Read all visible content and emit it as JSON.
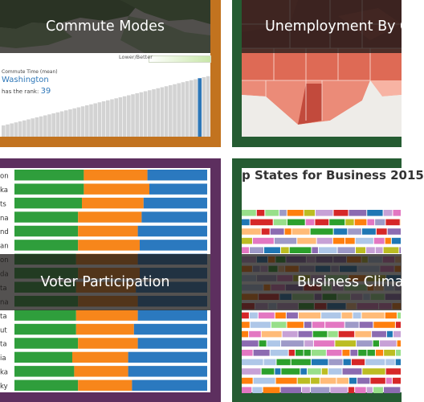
{
  "tiles": [
    {
      "caption": "Commute Modes",
      "frame_color": "#c2731f",
      "chart": {
        "legend_label": "Lower/Better",
        "metric_label": "Commute Time (mean)",
        "state": "Washington",
        "rank_prefix": "has the rank:",
        "rank_value": "39",
        "bar_color": "#d3d3d3",
        "highlight_color": "#2e77b8"
      }
    },
    {
      "caption": "Unemployment By C",
      "frame_color": "#255c32"
    },
    {
      "caption": "Voter Participation",
      "frame_color": "#5d2f5f",
      "chart": {
        "colors": [
          "#2f9e3c",
          "#f7861b",
          "#2b79bf"
        ],
        "row_labels": [
          "on",
          "ka",
          "ts",
          "na",
          "nd",
          "an",
          "on",
          "da",
          "ta",
          "na",
          "ta",
          "ut",
          "ta",
          "ia",
          "ka",
          "ky"
        ]
      }
    },
    {
      "caption": "Business Climat",
      "frame_color": "#255c32",
      "chart": {
        "title": "p States for Business 2015"
      }
    }
  ]
}
